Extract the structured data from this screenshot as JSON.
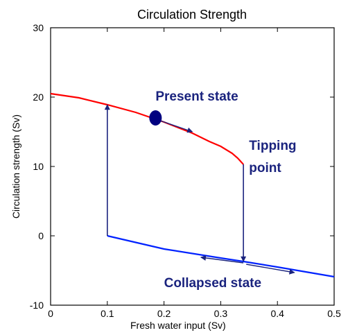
{
  "chart_data": {
    "type": "line",
    "title": "Circulation Strength",
    "xlabel": "Fresh water input (Sv)",
    "ylabel": "Circulation strength (Sv)",
    "xlim": [
      0,
      0.5
    ],
    "ylim": [
      -10,
      30
    ],
    "xticks": [
      {
        "value": 0,
        "label": "0"
      },
      {
        "value": 0.1,
        "label": "0.1"
      },
      {
        "value": 0.2,
        "label": "0.2"
      },
      {
        "value": 0.3,
        "label": "0.3"
      },
      {
        "value": 0.4,
        "label": "0.4"
      },
      {
        "value": 0.5,
        "label": "0.5"
      }
    ],
    "yticks": [
      {
        "value": -10,
        "label": "-10"
      },
      {
        "value": 0,
        "label": "0"
      },
      {
        "value": 10,
        "label": "10"
      },
      {
        "value": 20,
        "label": "20"
      },
      {
        "value": 30,
        "label": "30"
      }
    ],
    "grid": false,
    "series": [
      {
        "color": "#ff0000",
        "x": [
          0,
          0.05,
          0.1,
          0.15,
          0.2,
          0.25,
          0.28,
          0.3,
          0.32,
          0.33,
          0.34
        ],
        "y": [
          20.5,
          19.9,
          18.9,
          17.8,
          16.4,
          14.8,
          13.6,
          12.9,
          11.9,
          11.2,
          10.3
        ]
      },
      {
        "color": "#0022ff",
        "x": [
          0.1,
          0.2,
          0.3,
          0.34,
          0.4,
          0.5
        ],
        "y": [
          0,
          -1.9,
          -3.2,
          -3.7,
          -4.5,
          -5.9
        ]
      }
    ],
    "present_state": {
      "x": 0.185,
      "y": 17,
      "color": "#000080"
    },
    "transitions": [
      {
        "from": [
          0.34,
          10.3
        ],
        "to": [
          0.34,
          -3.7
        ]
      },
      {
        "from": [
          0.1,
          0
        ],
        "to": [
          0.1,
          18.9
        ]
      }
    ],
    "flow_arrows": [
      {
        "from": [
          0.19,
          16.7
        ],
        "to": [
          0.25,
          15.0
        ]
      },
      {
        "from": [
          0.34,
          -3.9
        ],
        "to": [
          0.265,
          -3.1
        ]
      },
      {
        "from": [
          0.345,
          -4.1
        ],
        "to": [
          0.43,
          -5.3
        ]
      }
    ],
    "annotations": [
      {
        "text": "Present state",
        "x": 0.185,
        "y": 19.5
      },
      {
        "text": "Tipping",
        "x": 0.35,
        "y": 12.4
      },
      {
        "text": "point",
        "x": 0.35,
        "y": 9.2
      },
      {
        "text": "Collapsed state",
        "x": 0.2,
        "y": -7.4
      }
    ]
  }
}
